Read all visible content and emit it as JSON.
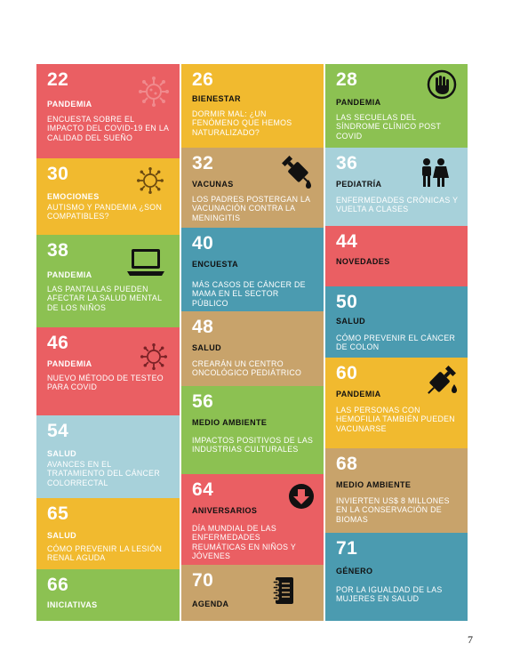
{
  "page_number": "7",
  "col1": [
    {
      "number": "22",
      "category": "PANDEMIA",
      "description": "ENCUESTA SOBRE EL IMPACTO DEL COVID-19 EN LA CALIDAD DEL SUEÑO",
      "icon": "virus-icon",
      "color": "#ea5f63"
    },
    {
      "number": "30",
      "category": "EMOCIONES",
      "description": "AUTISMO Y PANDEMIA ¿SON COMPATIBLES?",
      "icon": "virus-icon",
      "color": "#f1ba2f"
    },
    {
      "number": "38",
      "category": "PANDEMIA",
      "description": "LAS PANTALLAS PUEDEN AFECTAR LA SALUD MENTAL DE LOS NIÑOS",
      "icon": "laptop-icon",
      "color": "#8cc152"
    },
    {
      "number": "46",
      "category": "PANDEMIA",
      "description": "NUEVO MÉTODO DE TESTEO PARA COVID",
      "icon": "virus-icon",
      "color": "#ea5f63"
    },
    {
      "number": "54",
      "category": "SALUD",
      "description": "AVANCES EN EL TRATAMIENTO DEL CÁNCER COLORRECTAL",
      "icon": "",
      "color": "#a7d1da"
    },
    {
      "number": "65",
      "category": "SALUD",
      "description": "CÓMO PREVENIR LA LESIÓN RENAL AGUDA",
      "icon": "",
      "color": "#f1ba2f"
    },
    {
      "number": "66",
      "category": "INICIATIVAS",
      "description": "",
      "icon": "",
      "color": "#8cc152"
    }
  ],
  "col2": [
    {
      "number": "26",
      "category": "BIENESTAR",
      "description": "DORMIR MAL: ¿UN FENÓMENO QUE HEMOS NATURALIZADO?",
      "icon": "",
      "color": "#f1ba2f"
    },
    {
      "number": "32",
      "category": "VACUNAS",
      "description": "LOS PADRES POSTERGAN LA VACUNACIÓN CONTRA LA MENINGITIS",
      "icon": "syringe-icon",
      "color": "#c8a36b"
    },
    {
      "number": "40",
      "category": "ENCUESTA",
      "description": "MÁS CASOS DE CÁNCER DE MAMA EN EL SECTOR PÚBLICO",
      "icon": "",
      "color": "#4b9bb0"
    },
    {
      "number": "48",
      "category": "SALUD",
      "description": "CREARÁN UN CENTRO ONCOLÓGICO PEDIÁTRICO",
      "icon": "",
      "color": "#c8a36b"
    },
    {
      "number": "56",
      "category": "MEDIO AMBIENTE",
      "description": "IMPACTOS POSITIVOS DE LAS INDUSTRIAS CULTURALES",
      "icon": "",
      "color": "#8cc152"
    },
    {
      "number": "64",
      "category": "ANIVERSARIOS",
      "description": "DÍA MUNDIAL DE LAS ENFERMEDADES REUMÁTICAS EN NIÑOS Y JÓVENES",
      "icon": "download-icon",
      "color": "#ea5f63"
    },
    {
      "number": "70",
      "category": "AGENDA",
      "description": "",
      "icon": "notebook-icon",
      "color": "#c8a36b"
    }
  ],
  "col3": [
    {
      "number": "28",
      "category": "PANDEMIA",
      "description": "LAS SECUELAS DEL SÍNDROME CLÍNICO POST COVID",
      "icon": "stop-hand-icon",
      "color": "#8cc152"
    },
    {
      "number": "36",
      "category": "PEDIATRÍA",
      "description": "ENFERMEDADES CRÓNICAS Y VUELTA A CLASES",
      "icon": "children-icon",
      "color": "#a7d1da"
    },
    {
      "number": "44",
      "category": "NOVEDADES",
      "description": "",
      "icon": "",
      "color": "#ea5f63"
    },
    {
      "number": "50",
      "category": "SALUD",
      "description": "CÓMO PREVENIR EL CÁNCER DE COLON",
      "icon": "",
      "color": "#4b9bb0"
    },
    {
      "number": "60",
      "category": "PANDEMIA",
      "description": "LAS PERSONAS CON HEMOFILIA TAMBIÉN PUEDEN VACUNARSE",
      "icon": "syringe-icon",
      "color": "#f1ba2f"
    },
    {
      "number": "68",
      "category": "MEDIO AMBIENTE",
      "description": "INVIERTEN US$ 8 MILLONES EN LA CONSERVACIÓN DE BIOMAS",
      "icon": "",
      "color": "#c8a36b"
    },
    {
      "number": "71",
      "category": "GÉNERO",
      "description": "POR LA IGUALDAD DE LAS MUJERES EN SALUD",
      "icon": "",
      "color": "#4b9bb0"
    }
  ]
}
